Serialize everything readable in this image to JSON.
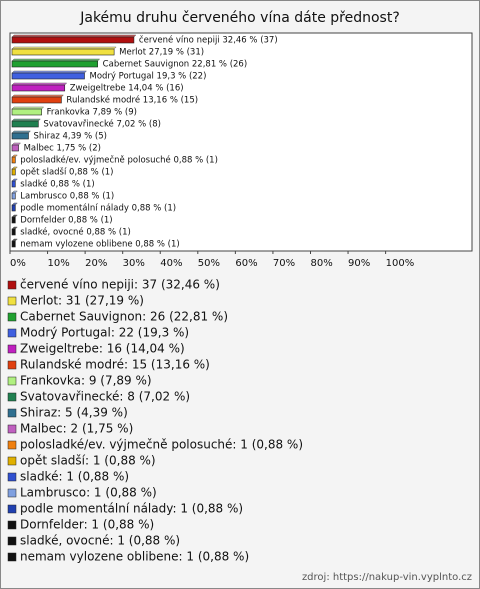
{
  "chart_data": {
    "type": "bar",
    "orientation": "horizontal",
    "title": "Jakému druhu červeného vína dáte přednost?",
    "values": [
      32.46,
      27.19,
      22.81,
      19.3,
      14.04,
      13.16,
      7.89,
      7.02,
      4.39,
      1.75,
      0.88,
      0.88,
      0.88,
      0.88,
      0.88,
      0.88,
      0.88,
      0.88
    ],
    "value_labels": [
      "červené víno nepiji 32,46 % (37)",
      "Merlot 27,19 % (31)",
      "Cabernet Sauvignon 22,81 % (26)",
      "Modrý Portugal 19,3 % (22)",
      "Zweigeltrebe 14,04 % (16)",
      "Rulandské modré 13,16 % (15)",
      "Frankovka 7,89 % (9)",
      "Svatovavřinecké 7,02 % (8)",
      "Shiraz 4,39 % (5)",
      "Malbec 1,75 % (2)",
      "polosladké/ev. výjmečně polosuché 0,88 % (1)",
      "opět sladší 0,88 % (1)",
      "sladké 0,88 % (1)",
      "Lambrusco 0,88 % (1)",
      "podle momentální nálady 0,88 % (1)",
      "Dornfelder 0,88 % (1)",
      "sladké, ovocné 0,88 % (1)",
      "nemam vylozene oblibene 0,88 % (1)"
    ],
    "legend_labels": [
      "červené víno nepiji: 37 (32,46 %)",
      "Merlot: 31 (27,19 %)",
      "Cabernet Sauvignon: 26 (22,81 %)",
      "Modrý Portugal: 22 (19,3 %)",
      "Zweigeltrebe: 16 (14,04 %)",
      "Rulandské modré: 15 (13,16 %)",
      "Frankovka: 9 (7,89 %)",
      "Svatovavřinecké: 8 (7,02 %)",
      "Shiraz: 5 (4,39 %)",
      "Malbec: 2 (1,75 %)",
      "polosladké/ev. výjmečně polosuché: 1 (0,88 %)",
      "opět sladší: 1 (0,88 %)",
      "sladké: 1 (0,88 %)",
      "Lambrusco: 1 (0,88 %)",
      "podle momentální nálady: 1 (0,88 %)",
      "Dornfelder: 1 (0,88 %)",
      "sladké, ovocné: 1 (0,88 %)",
      "nemam vylozene oblibene: 1 (0,88 %)"
    ],
    "colors": [
      "#b01010",
      "#f0e040",
      "#20a030",
      "#4060e0",
      "#c020c0",
      "#e04010",
      "#b0f080",
      "#208050",
      "#307090",
      "#c060c0",
      "#f08010",
      "#e0b000",
      "#3050d0",
      "#80a0e0",
      "#2040b0",
      "#111111",
      "#111111",
      "#111111"
    ],
    "xlim": [
      0,
      123
    ],
    "xticks": [
      {
        "value": 0,
        "label": "0%"
      },
      {
        "value": 10,
        "label": "10%"
      },
      {
        "value": 20,
        "label": "20%"
      },
      {
        "value": 30,
        "label": "30%"
      },
      {
        "value": 40,
        "label": "40%"
      },
      {
        "value": 50,
        "label": "50%"
      },
      {
        "value": 60,
        "label": "60%"
      },
      {
        "value": 70,
        "label": "70%"
      },
      {
        "value": 80,
        "label": "80%"
      },
      {
        "value": 90,
        "label": "90%"
      },
      {
        "value": 100,
        "label": "100%"
      }
    ],
    "source": "zdroj: https://nakup-vin.vyplnto.cz"
  }
}
